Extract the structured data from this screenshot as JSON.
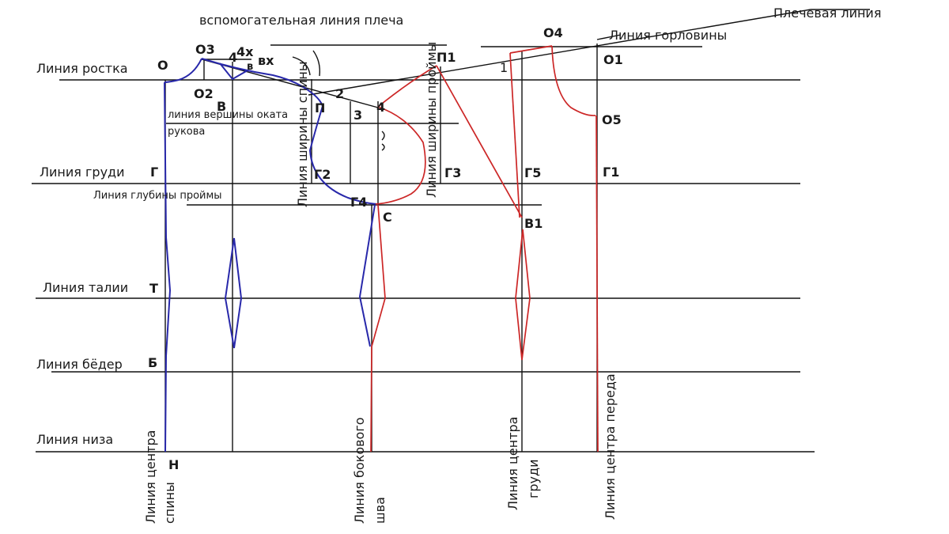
{
  "title": "вспомогательная линия плеча",
  "shoulder_line": "Плечевая линия",
  "neckline_line": "Линия горловины",
  "horizontal_lines": {
    "rost": "Линия ростка",
    "grudi": "Линия груди",
    "talii": "Линия талии",
    "beder": "Линия бёдер",
    "niza": "Линия низа"
  },
  "aux_labels": {
    "okat": "линия вершины оката рукова",
    "proima_depth": "Линия глубины проймы",
    "back_width": "Линия ширины спины",
    "armhole_width": "Линия ширины проймы"
  },
  "vertical_lines": {
    "back_center_1": "Линия центра",
    "back_center_2": "спины",
    "side_seam_1": "Линия бокового",
    "side_seam_2": "шва",
    "chest_center_1": "Линия центра",
    "chest_center_2": "груди",
    "front_center": "Линия центра переда"
  },
  "points": {
    "O": "О",
    "O3": "О3",
    "O2": "О2",
    "B": "В",
    "P": "П",
    "G": "Г",
    "T": "Т",
    "Bb": "Б",
    "N": "Н",
    "four_x": "4х",
    "four": "4",
    "v": "в",
    "vx": "вх",
    "two": "2",
    "three": "3",
    "four_mid": "4",
    "P1": "П1",
    "O4": "О4",
    "O1": "О1",
    "one": "1",
    "O5": "О5",
    "G1": "Г1",
    "G2": "Г2",
    "G3": "Г3",
    "G4": "Г4",
    "C": "С",
    "G5": "Г5",
    "B1": "В1"
  },
  "colors": {
    "construction": "#111111",
    "back": "#2222aa",
    "front": "#cc2222"
  }
}
